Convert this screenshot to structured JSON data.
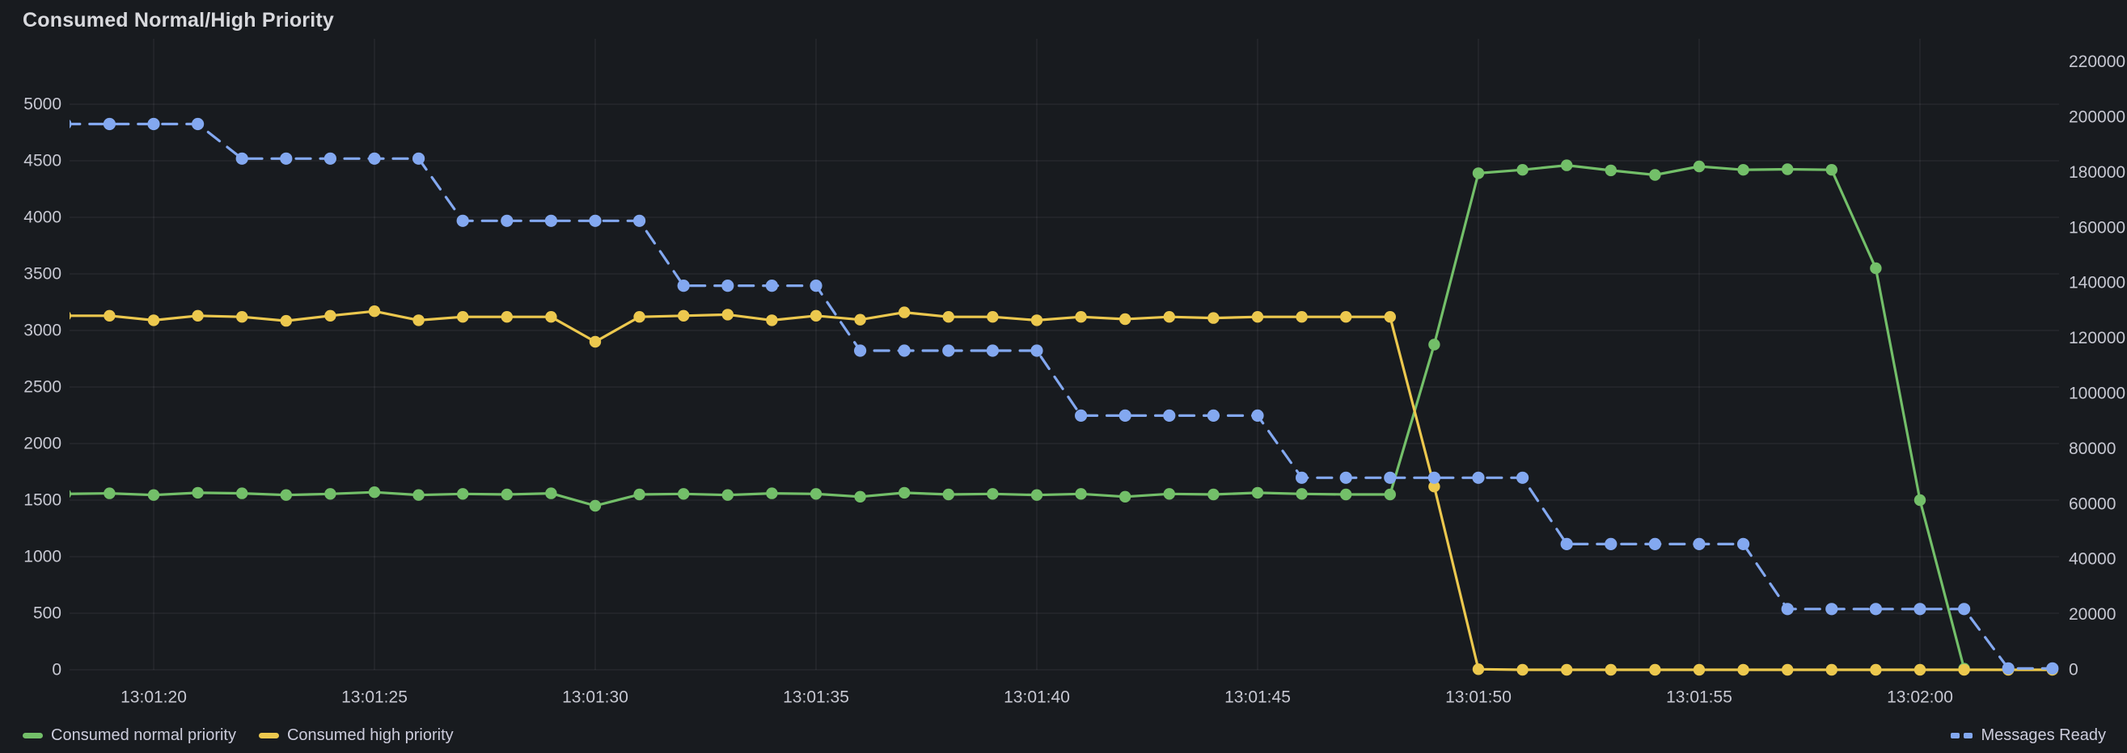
{
  "panel": {
    "title": "Consumed Normal/High Priority"
  },
  "chart_data": {
    "type": "line",
    "title": "Consumed Normal/High Priority",
    "x_is_time": true,
    "grid": true,
    "legend_position": "bottom",
    "x_ticks": [
      {
        "t": 20,
        "label": "13:01:20"
      },
      {
        "t": 25,
        "label": "13:01:25"
      },
      {
        "t": 30,
        "label": "13:01:30"
      },
      {
        "t": 35,
        "label": "13:01:35"
      },
      {
        "t": 40,
        "label": "13:01:40"
      },
      {
        "t": 45,
        "label": "13:01:45"
      },
      {
        "t": 50,
        "label": "13:01:50"
      },
      {
        "t": 55,
        "label": "13:01:55"
      },
      {
        "t": 60,
        "label": "13:02:00"
      }
    ],
    "axes": {
      "left": {
        "min": 0,
        "max": 5000,
        "tick_step": 500,
        "ticks": [
          0,
          500,
          1000,
          1500,
          2000,
          2500,
          3000,
          3500,
          4000,
          4500,
          5000
        ]
      },
      "right": {
        "min": 0,
        "max": 220000,
        "tick_step": 20000,
        "ticks": [
          0,
          20000,
          40000,
          60000,
          80000,
          100000,
          120000,
          140000,
          160000,
          180000,
          200000,
          220000
        ]
      }
    },
    "series": [
      {
        "name": "Consumed normal priority",
        "axis": "left",
        "style": "solid",
        "legend": "left",
        "color": "#73bf69",
        "points": [
          [
            18,
            1555
          ],
          [
            19,
            1560
          ],
          [
            20,
            1545
          ],
          [
            21,
            1565
          ],
          [
            22,
            1560
          ],
          [
            23,
            1545
          ],
          [
            24,
            1555
          ],
          [
            25,
            1570
          ],
          [
            26,
            1545
          ],
          [
            27,
            1555
          ],
          [
            28,
            1550
          ],
          [
            29,
            1560
          ],
          [
            30,
            1450
          ],
          [
            31,
            1550
          ],
          [
            32,
            1555
          ],
          [
            33,
            1545
          ],
          [
            34,
            1560
          ],
          [
            35,
            1555
          ],
          [
            36,
            1530
          ],
          [
            37,
            1565
          ],
          [
            38,
            1550
          ],
          [
            39,
            1555
          ],
          [
            40,
            1545
          ],
          [
            41,
            1555
          ],
          [
            42,
            1530
          ],
          [
            43,
            1555
          ],
          [
            44,
            1550
          ],
          [
            45,
            1565
          ],
          [
            46,
            1555
          ],
          [
            47,
            1550
          ],
          [
            48,
            1550
          ],
          [
            49,
            2875
          ],
          [
            50,
            4390
          ],
          [
            51,
            4420
          ],
          [
            52,
            4460
          ],
          [
            53,
            4415
          ],
          [
            54,
            4375
          ],
          [
            55,
            4450
          ],
          [
            56,
            4420
          ],
          [
            57,
            4425
          ],
          [
            58,
            4420
          ],
          [
            59,
            3550
          ],
          [
            60,
            1500
          ],
          [
            61,
            10
          ]
        ]
      },
      {
        "name": "Consumed high priority",
        "axis": "left",
        "style": "solid",
        "legend": "left",
        "color": "#ecc84e",
        "points": [
          [
            18,
            3130
          ],
          [
            19,
            3130
          ],
          [
            20,
            3090
          ],
          [
            21,
            3130
          ],
          [
            22,
            3120
          ],
          [
            23,
            3085
          ],
          [
            24,
            3130
          ],
          [
            25,
            3170
          ],
          [
            26,
            3090
          ],
          [
            27,
            3120
          ],
          [
            28,
            3120
          ],
          [
            29,
            3120
          ],
          [
            30,
            2900
          ],
          [
            31,
            3120
          ],
          [
            32,
            3130
          ],
          [
            33,
            3140
          ],
          [
            34,
            3090
          ],
          [
            35,
            3130
          ],
          [
            36,
            3095
          ],
          [
            37,
            3160
          ],
          [
            38,
            3120
          ],
          [
            39,
            3120
          ],
          [
            40,
            3090
          ],
          [
            41,
            3120
          ],
          [
            42,
            3100
          ],
          [
            43,
            3120
          ],
          [
            44,
            3110
          ],
          [
            45,
            3120
          ],
          [
            46,
            3120
          ],
          [
            47,
            3120
          ],
          [
            48,
            3120
          ],
          [
            49,
            1620
          ],
          [
            50,
            5
          ],
          [
            51,
            0
          ],
          [
            52,
            0
          ],
          [
            53,
            0
          ],
          [
            54,
            0
          ],
          [
            55,
            0
          ],
          [
            56,
            0
          ],
          [
            57,
            0
          ],
          [
            58,
            0
          ],
          [
            59,
            0
          ],
          [
            60,
            0
          ],
          [
            61,
            0
          ],
          [
            62,
            0
          ],
          [
            63,
            0
          ]
        ]
      },
      {
        "name": "Messages Ready",
        "axis": "right",
        "style": "dashed",
        "legend": "right",
        "color": "#83a8f0",
        "points": [
          [
            18,
            197500
          ],
          [
            19,
            197500
          ],
          [
            20,
            197500
          ],
          [
            21,
            197500
          ],
          [
            22,
            185000
          ],
          [
            23,
            185000
          ],
          [
            24,
            185000
          ],
          [
            25,
            185000
          ],
          [
            26,
            185000
          ],
          [
            27,
            162500
          ],
          [
            28,
            162500
          ],
          [
            29,
            162500
          ],
          [
            30,
            162500
          ],
          [
            31,
            162500
          ],
          [
            32,
            139000
          ],
          [
            33,
            139000
          ],
          [
            34,
            139000
          ],
          [
            35,
            139000
          ],
          [
            36,
            115500
          ],
          [
            37,
            115500
          ],
          [
            38,
            115500
          ],
          [
            39,
            115500
          ],
          [
            40,
            115500
          ],
          [
            41,
            92000
          ],
          [
            42,
            92000
          ],
          [
            43,
            92000
          ],
          [
            44,
            92000
          ],
          [
            45,
            92000
          ],
          [
            46,
            69500
          ],
          [
            47,
            69500
          ],
          [
            48,
            69500
          ],
          [
            49,
            69500
          ],
          [
            50,
            69500
          ],
          [
            51,
            69500
          ],
          [
            52,
            45500
          ],
          [
            53,
            45500
          ],
          [
            54,
            45500
          ],
          [
            55,
            45500
          ],
          [
            56,
            45500
          ],
          [
            57,
            22000
          ],
          [
            58,
            22000
          ],
          [
            59,
            22000
          ],
          [
            60,
            22000
          ],
          [
            61,
            22000
          ],
          [
            62,
            500
          ],
          [
            63,
            500
          ]
        ]
      }
    ],
    "colors": {
      "background": "#181b1f",
      "grid": "rgba(204,204,220,0.08)",
      "tick_text": "#c7c8d2",
      "title_text": "#d8d9dd"
    }
  }
}
